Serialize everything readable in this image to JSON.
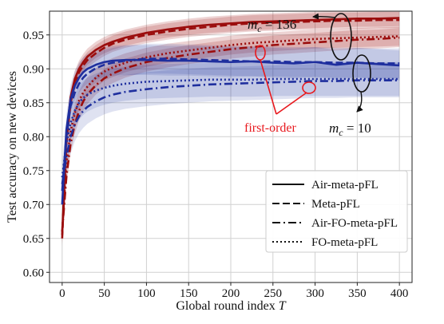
{
  "chart_data": {
    "type": "line",
    "xlabel": "Global round index",
    "xlabel_var": "T",
    "ylabel": "Test accuracy on new devices",
    "xlim": [
      -15,
      415
    ],
    "ylim": [
      0.585,
      0.985
    ],
    "xticks": [
      0,
      50,
      100,
      150,
      200,
      250,
      300,
      350,
      400
    ],
    "yticks": [
      0.6,
      0.65,
      0.7,
      0.75,
      0.8,
      0.85,
      0.9,
      0.95
    ],
    "grid": true,
    "legend_position": "lower-right",
    "colors": {
      "red": "#9b0d0d",
      "blue": "#1f2f9e",
      "annotation": "#e8191e"
    },
    "line_styles": [
      {
        "label": "Air-meta-pFL",
        "dash": "solid"
      },
      {
        "label": "Meta-pFL",
        "dash": "dashed"
      },
      {
        "label": "Air-FO-meta-pFL",
        "dash": "dashdot"
      },
      {
        "label": "FO-meta-pFL",
        "dash": "dotted"
      }
    ],
    "groups": [
      {
        "name": "m_c = 136",
        "label_main": "m",
        "label_sub": "c",
        "label_rest": " = 136",
        "color": "red"
      },
      {
        "name": "m_c = 10",
        "label_main": "m",
        "label_sub": "c",
        "label_rest": " = 10",
        "color": "blue"
      }
    ],
    "annotation": "first-order",
    "x": [
      0,
      5,
      10,
      15,
      20,
      25,
      30,
      40,
      50,
      60,
      75,
      100,
      125,
      150,
      175,
      200,
      225,
      250,
      275,
      300,
      325,
      350,
      375,
      400
    ],
    "series": [
      {
        "group": "m_c = 136",
        "style": "solid",
        "color": "red",
        "band": 0.012,
        "values": [
          0.655,
          0.8,
          0.858,
          0.885,
          0.9,
          0.91,
          0.918,
          0.928,
          0.935,
          0.94,
          0.946,
          0.953,
          0.958,
          0.962,
          0.965,
          0.967,
          0.969,
          0.97,
          0.971,
          0.972,
          0.973,
          0.974,
          0.974,
          0.975
        ]
      },
      {
        "group": "m_c = 136",
        "style": "dashed",
        "color": "red",
        "band": 0.012,
        "values": [
          0.65,
          0.79,
          0.85,
          0.878,
          0.895,
          0.905,
          0.913,
          0.923,
          0.931,
          0.937,
          0.943,
          0.95,
          0.955,
          0.959,
          0.962,
          0.965,
          0.967,
          0.968,
          0.969,
          0.97,
          0.971,
          0.971,
          0.972,
          0.972
        ]
      },
      {
        "group": "m_c = 136",
        "style": "dashdot",
        "color": "red",
        "band": 0.014,
        "values": [
          0.66,
          0.74,
          0.79,
          0.818,
          0.838,
          0.852,
          0.862,
          0.876,
          0.886,
          0.893,
          0.901,
          0.91,
          0.916,
          0.921,
          0.925,
          0.929,
          0.932,
          0.935,
          0.937,
          0.939,
          0.941,
          0.943,
          0.944,
          0.946
        ]
      },
      {
        "group": "m_c = 136",
        "style": "dotted",
        "color": "red",
        "band": 0.014,
        "values": [
          0.66,
          0.76,
          0.808,
          0.835,
          0.853,
          0.865,
          0.874,
          0.887,
          0.896,
          0.902,
          0.909,
          0.917,
          0.923,
          0.927,
          0.931,
          0.935,
          0.938,
          0.94,
          0.942,
          0.944,
          0.945,
          0.946,
          0.947,
          0.948
        ]
      },
      {
        "group": "m_c = 10",
        "style": "solid",
        "color": "blue",
        "band": 0.022,
        "values": [
          0.7,
          0.81,
          0.855,
          0.875,
          0.887,
          0.895,
          0.9,
          0.906,
          0.91,
          0.912,
          0.913,
          0.913,
          0.912,
          0.912,
          0.911,
          0.91,
          0.911,
          0.909,
          0.908,
          0.91,
          0.906,
          0.909,
          0.907,
          0.905
        ]
      },
      {
        "group": "m_c = 10",
        "style": "dashed",
        "color": "blue",
        "band": 0.022,
        "values": [
          0.72,
          0.8,
          0.845,
          0.865,
          0.878,
          0.887,
          0.893,
          0.901,
          0.906,
          0.909,
          0.912,
          0.915,
          0.915,
          0.914,
          0.913,
          0.912,
          0.911,
          0.911,
          0.91,
          0.91,
          0.909,
          0.909,
          0.908,
          0.908
        ]
      },
      {
        "group": "m_c = 10",
        "style": "dashdot",
        "color": "blue",
        "band": 0.025,
        "values": [
          0.73,
          0.77,
          0.8,
          0.818,
          0.83,
          0.838,
          0.844,
          0.852,
          0.858,
          0.862,
          0.866,
          0.87,
          0.873,
          0.875,
          0.877,
          0.878,
          0.879,
          0.88,
          0.881,
          0.882,
          0.882,
          0.883,
          0.883,
          0.883
        ]
      },
      {
        "group": "m_c = 10",
        "style": "dotted",
        "color": "blue",
        "band": 0.025,
        "values": [
          0.74,
          0.79,
          0.82,
          0.838,
          0.85,
          0.857,
          0.862,
          0.868,
          0.872,
          0.875,
          0.878,
          0.881,
          0.882,
          0.883,
          0.884,
          0.884,
          0.884,
          0.885,
          0.885,
          0.885,
          0.885,
          0.885,
          0.885,
          0.885
        ]
      }
    ]
  }
}
